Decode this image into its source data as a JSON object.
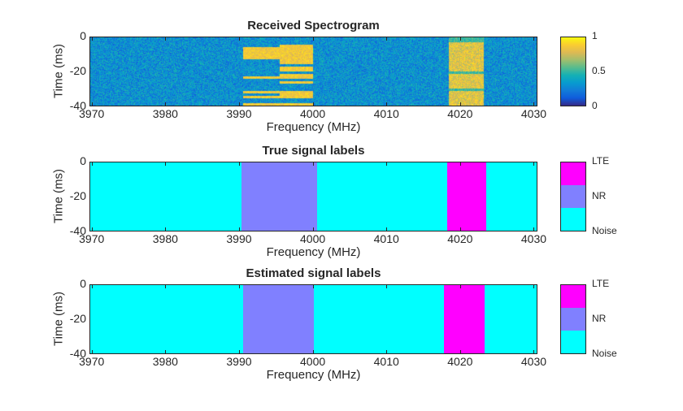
{
  "chart_data": [
    {
      "type": "heatmap",
      "title": "Received Spectrogram",
      "xlabel": "Frequency (MHz)",
      "ylabel": "Time (ms)",
      "xlim": [
        3969.7,
        4030.5
      ],
      "ylim": [
        -40,
        0
      ],
      "xticks": [
        "3970",
        "3980",
        "3990",
        "4000",
        "4010",
        "4020",
        "4030"
      ],
      "yticks": [
        "0",
        "-20",
        "-40"
      ],
      "colorbar": {
        "colormap": "parula",
        "range": [
          0,
          1
        ],
        "ticks": [
          "1",
          "0.5",
          "0"
        ]
      },
      "background_level": 0.3,
      "signals": [
        {
          "x": [
            3990.5,
            4000
          ],
          "level": 0.85,
          "pattern": "intermittent horizontal bursts"
        },
        {
          "x": [
            4018.5,
            4023.3
          ],
          "level": 0.8,
          "pattern": "dense bursts"
        }
      ]
    },
    {
      "type": "heatmap",
      "title": "True signal labels",
      "xlabel": "Frequency (MHz)",
      "ylabel": "Time (ms)",
      "xlim": [
        3969.7,
        4030.5
      ],
      "ylim": [
        -40,
        0
      ],
      "xticks": [
        "3970",
        "3980",
        "3990",
        "4000",
        "4010",
        "4020",
        "4030"
      ],
      "yticks": [
        "0",
        "-20",
        "-40"
      ],
      "classes": [
        {
          "name": "LTE",
          "color": "#ff00ff"
        },
        {
          "name": "NR",
          "color": "#8080ff"
        },
        {
          "name": "Noise",
          "color": "#00ffff"
        }
      ],
      "regions": [
        {
          "label": "NR",
          "x": [
            3990.3,
            4000.6
          ]
        },
        {
          "label": "LTE",
          "x": [
            4018.3,
            4023.5
          ]
        }
      ]
    },
    {
      "type": "heatmap",
      "title": "Estimated signal labels",
      "xlabel": "Frequency (MHz)",
      "ylabel": "Time (ms)",
      "xlim": [
        3969.7,
        4030.5
      ],
      "ylim": [
        -40,
        0
      ],
      "xticks": [
        "3970",
        "3980",
        "3990",
        "4000",
        "4010",
        "4020",
        "4030"
      ],
      "yticks": [
        "0",
        "-20",
        "-40"
      ],
      "classes": [
        {
          "name": "LTE",
          "color": "#ff00ff"
        },
        {
          "name": "NR",
          "color": "#8080ff"
        },
        {
          "name": "Noise",
          "color": "#00ffff"
        }
      ],
      "regions": [
        {
          "label": "NR",
          "x": [
            3990.55,
            4000.2
          ]
        },
        {
          "label": "LTE",
          "x": [
            4017.8,
            4023.3
          ]
        }
      ]
    }
  ]
}
